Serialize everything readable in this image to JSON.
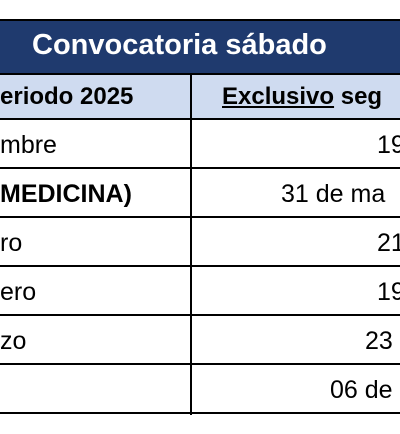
{
  "title": "Convocatoria sábado",
  "header": {
    "col1": "eriodo 2025",
    "col2_underlined": "Exclusivo",
    "col2_rest": " seg"
  },
  "rows": [
    {
      "left": "mbre",
      "right": "19",
      "left_bold": false
    },
    {
      "left": "MEDICINA)",
      "right": "31 de ma",
      "left_bold": true
    },
    {
      "left": "ro",
      "right": "21",
      "left_bold": false
    },
    {
      "left": "ero",
      "right": "19",
      "left_bold": false
    },
    {
      "left": "zo",
      "right": "23",
      "left_bold": false
    },
    {
      "left": "",
      "right": "06 de",
      "left_bold": false
    }
  ],
  "colors": {
    "title_bg": "#1f3a6e",
    "header_bg": "#cfdbf0"
  }
}
